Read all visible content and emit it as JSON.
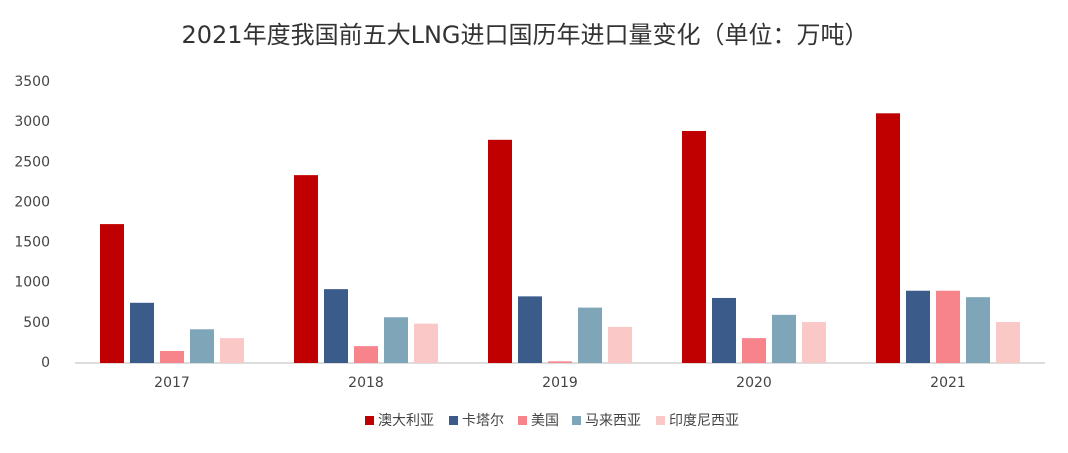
{
  "chart_data": {
    "type": "bar",
    "title": "2021年度我国前五大LNG进口国历年进口量变化（单位：万吨）",
    "categories": [
      "2017",
      "2018",
      "2019",
      "2020",
      "2021"
    ],
    "series": [
      {
        "name": "澳大利亚",
        "color": "#c00000",
        "values": [
          1730,
          2340,
          2780,
          2890,
          3110
        ]
      },
      {
        "name": "卡塔尔",
        "color": "#3b5b8b",
        "values": [
          750,
          920,
          830,
          810,
          900
        ]
      },
      {
        "name": "美国",
        "color": "#f7848b",
        "values": [
          150,
          210,
          20,
          310,
          900
        ]
      },
      {
        "name": "马来西亚",
        "color": "#7fa5b8",
        "values": [
          420,
          570,
          690,
          600,
          820
        ]
      },
      {
        "name": "印度尼西亚",
        "color": "#fbc8c8",
        "values": [
          310,
          490,
          450,
          510,
          510
        ]
      }
    ],
    "ylim": [
      0,
      3500
    ],
    "yticks": [
      0,
      500,
      1000,
      1500,
      2000,
      2500,
      3000,
      3500
    ],
    "grid": false,
    "legend": "bottom"
  }
}
